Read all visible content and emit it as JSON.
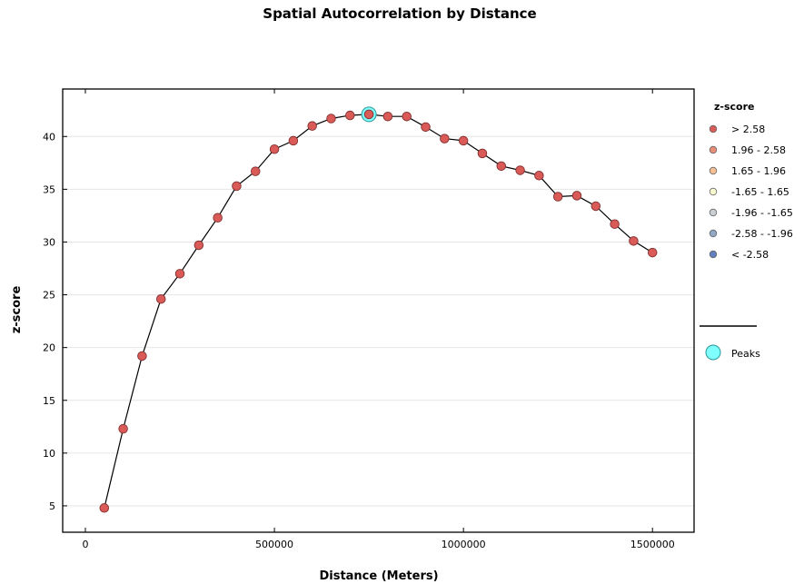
{
  "chart_data": {
    "type": "line",
    "title": "Spatial Autocorrelation by Distance",
    "xlabel": "Distance (Meters)",
    "ylabel": "z-score",
    "xlim": [
      -60000,
      1610000
    ],
    "ylim": [
      2.5,
      44.5
    ],
    "x_ticks": [
      0,
      500000,
      1000000,
      1500000
    ],
    "x_tick_labels": [
      "0",
      "500000",
      "1000000",
      "1500000"
    ],
    "y_ticks": [
      5,
      10,
      15,
      20,
      25,
      30,
      35,
      40
    ],
    "y_tick_labels": [
      "5",
      "10",
      "15",
      "20",
      "25",
      "30",
      "35",
      "40"
    ],
    "grid": "horizontal",
    "legend_placement": "right-outside",
    "x": [
      50000,
      100000,
      150000,
      200000,
      250000,
      300000,
      350000,
      400000,
      450000,
      500000,
      550000,
      600000,
      650000,
      700000,
      750000,
      800000,
      850000,
      900000,
      950000,
      1000000,
      1050000,
      1100000,
      1150000,
      1200000,
      1250000,
      1300000,
      1350000,
      1400000,
      1450000,
      1500000
    ],
    "y": [
      4.8,
      12.3,
      19.2,
      24.6,
      27.0,
      29.7,
      32.3,
      35.3,
      36.7,
      38.8,
      39.6,
      41.0,
      41.7,
      42.0,
      42.1,
      41.9,
      41.9,
      40.9,
      39.8,
      39.6,
      38.4,
      37.2,
      36.8,
      36.3,
      34.3,
      34.4,
      33.4,
      31.7,
      30.1,
      29.0
    ],
    "peaks": [
      {
        "x": 750000,
        "y": 42.1
      }
    ],
    "line_color": "#000000",
    "point_color": "#d95a57",
    "point_edge_color": "#803030",
    "peak_color": "#80ffff",
    "peak_edge_color": "#2a9a9a",
    "legend": {
      "title": "z-score",
      "items": [
        {
          "label": "> 2.58",
          "color": "#d95a57"
        },
        {
          "label": "1.96 - 2.58",
          "color": "#e88d76"
        },
        {
          "label": "1.65 - 1.96",
          "color": "#f5c096"
        },
        {
          "label": "-1.65 - 1.65",
          "color": "#fbfbd0"
        },
        {
          "label": "-1.96 - -1.65",
          "color": "#c9cfd2"
        },
        {
          "label": "-2.58 - -1.96",
          "color": "#92a6c6"
        },
        {
          "label": "< -2.58",
          "color": "#5f7fbe"
        }
      ],
      "peaks_label": "Peaks"
    }
  }
}
